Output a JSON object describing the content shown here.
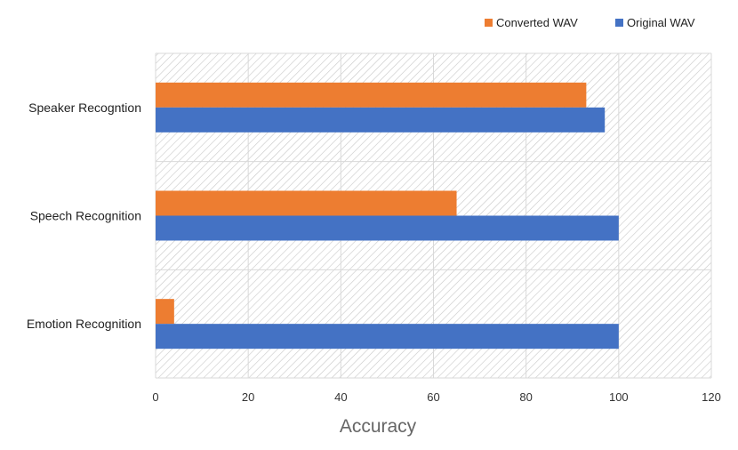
{
  "chart_data": {
    "type": "bar",
    "orientation": "horizontal",
    "categories": [
      "Speaker Recogntion",
      "Speech Recognition",
      "Emotion Recognition"
    ],
    "series": [
      {
        "name": "Converted WAV",
        "color": "#ED7D31",
        "values": [
          93,
          65,
          4
        ]
      },
      {
        "name": "Original WAV",
        "color": "#4472C4",
        "values": [
          97,
          100,
          100
        ]
      }
    ],
    "xlabel": "Accuracy",
    "xlim": [
      0,
      120
    ],
    "xticks": [
      "0",
      "20",
      "40",
      "60",
      "80",
      "100",
      "120"
    ],
    "grid": true,
    "legend_position": "top-right"
  }
}
